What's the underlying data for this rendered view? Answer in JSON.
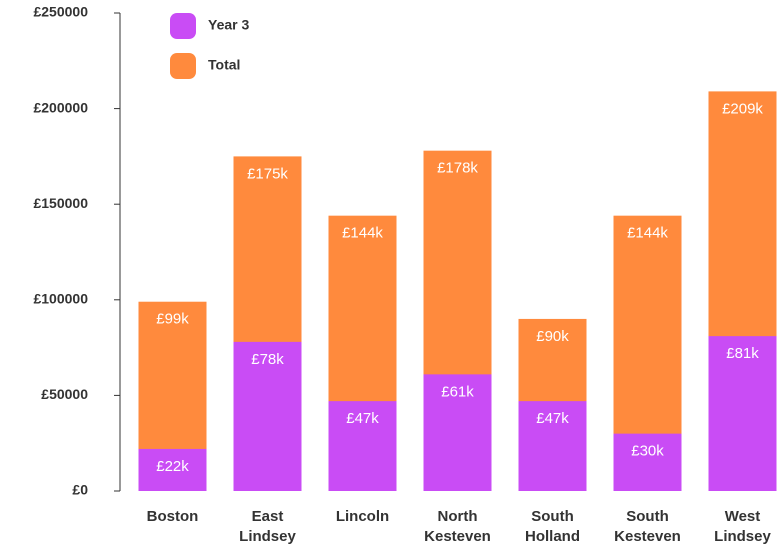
{
  "chart_data": {
    "type": "bar",
    "categories": [
      "Boston",
      "East Lindsey",
      "Lincoln",
      "North Kesteven",
      "South Holland",
      "South Kesteven",
      "West Lindsey"
    ],
    "series": [
      {
        "name": "Total",
        "color": "#ff8a3d",
        "values": [
          99000,
          175000,
          144000,
          178000,
          90000,
          144000,
          209000
        ],
        "value_labels": [
          "£99k",
          "£175k",
          "£144k",
          "£178k",
          "£90k",
          "£144k",
          "£209k"
        ]
      },
      {
        "name": "Year 3",
        "color": "#c94cf5",
        "values": [
          22000,
          78000,
          47000,
          61000,
          47000,
          30000,
          81000
        ],
        "value_labels": [
          "£22k",
          "£78k",
          "£47k",
          "£61k",
          "£47k",
          "£30k",
          "£81k"
        ]
      }
    ],
    "legend_order": [
      "Year 3",
      "Total"
    ],
    "ylim": [
      0,
      250000
    ],
    "yticks": [
      {
        "value": 0,
        "label": "£0"
      },
      {
        "value": 50000,
        "label": "£50000"
      },
      {
        "value": 100000,
        "label": "£100000"
      },
      {
        "value": 150000,
        "label": "£150000"
      },
      {
        "value": 200000,
        "label": "£200000"
      },
      {
        "value": 250000,
        "label": "£250000"
      }
    ]
  }
}
